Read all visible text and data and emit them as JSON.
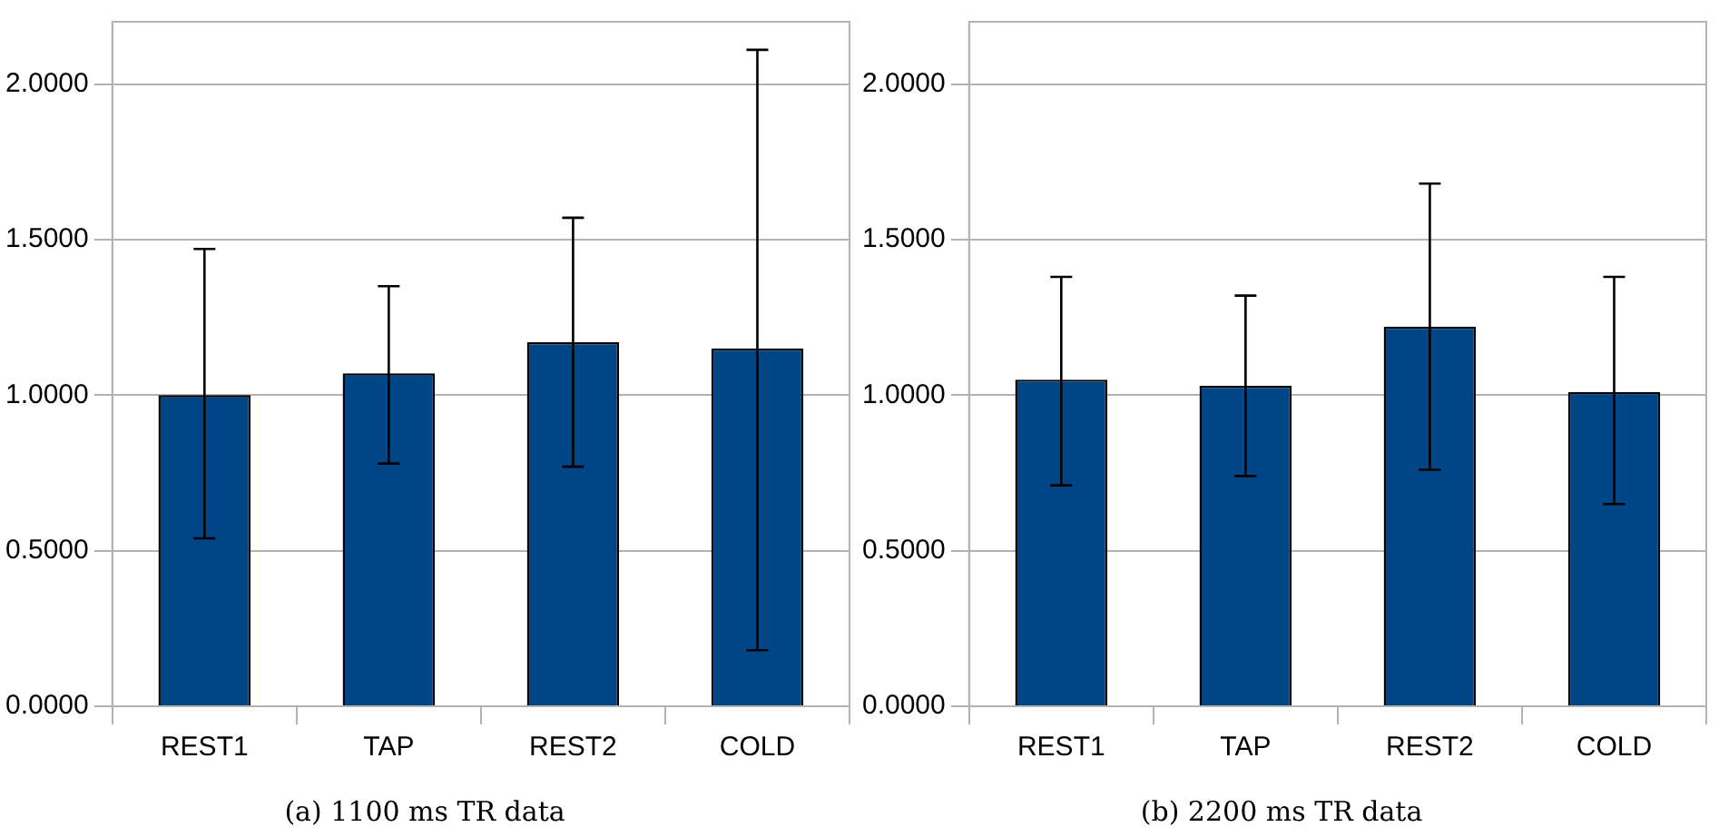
{
  "chart_data": [
    {
      "type": "bar",
      "title": "(a) 1100 ms TR data",
      "categories": [
        "REST1",
        "TAP",
        "REST2",
        "COLD"
      ],
      "values": [
        1.0,
        1.07,
        1.17,
        1.15
      ],
      "color": "#004586",
      "errors": [
        [
          0.54,
          1.47
        ],
        [
          0.78,
          1.35
        ],
        [
          0.77,
          1.57
        ],
        [
          0.18,
          2.11
        ]
      ],
      "ylim": [
        0,
        2.2
      ],
      "yticks": [
        {
          "value": 0,
          "label": "0.0000"
        },
        {
          "value": 0.5,
          "label": "0.5000"
        },
        {
          "value": 1,
          "label": "1.0000"
        },
        {
          "value": 1.5,
          "label": "1.5000"
        },
        {
          "value": 2,
          "label": "2.0000"
        }
      ],
      "grid": "y"
    },
    {
      "type": "bar",
      "title": "(b) 2200 ms TR data",
      "categories": [
        "REST1",
        "TAP",
        "REST2",
        "COLD"
      ],
      "values": [
        1.05,
        1.03,
        1.22,
        1.01
      ],
      "color": "#004586",
      "errors": [
        [
          0.71,
          1.38
        ],
        [
          0.74,
          1.32
        ],
        [
          0.76,
          1.68
        ],
        [
          0.65,
          1.38
        ]
      ],
      "ylim": [
        0,
        2.2
      ],
      "yticks": [
        {
          "value": 0,
          "label": "0.0000"
        },
        {
          "value": 0.5,
          "label": "0.5000"
        },
        {
          "value": 1,
          "label": "1.0000"
        },
        {
          "value": 1.5,
          "label": "1.5000"
        },
        {
          "value": 2,
          "label": "2.0000"
        }
      ],
      "grid": "y"
    }
  ]
}
